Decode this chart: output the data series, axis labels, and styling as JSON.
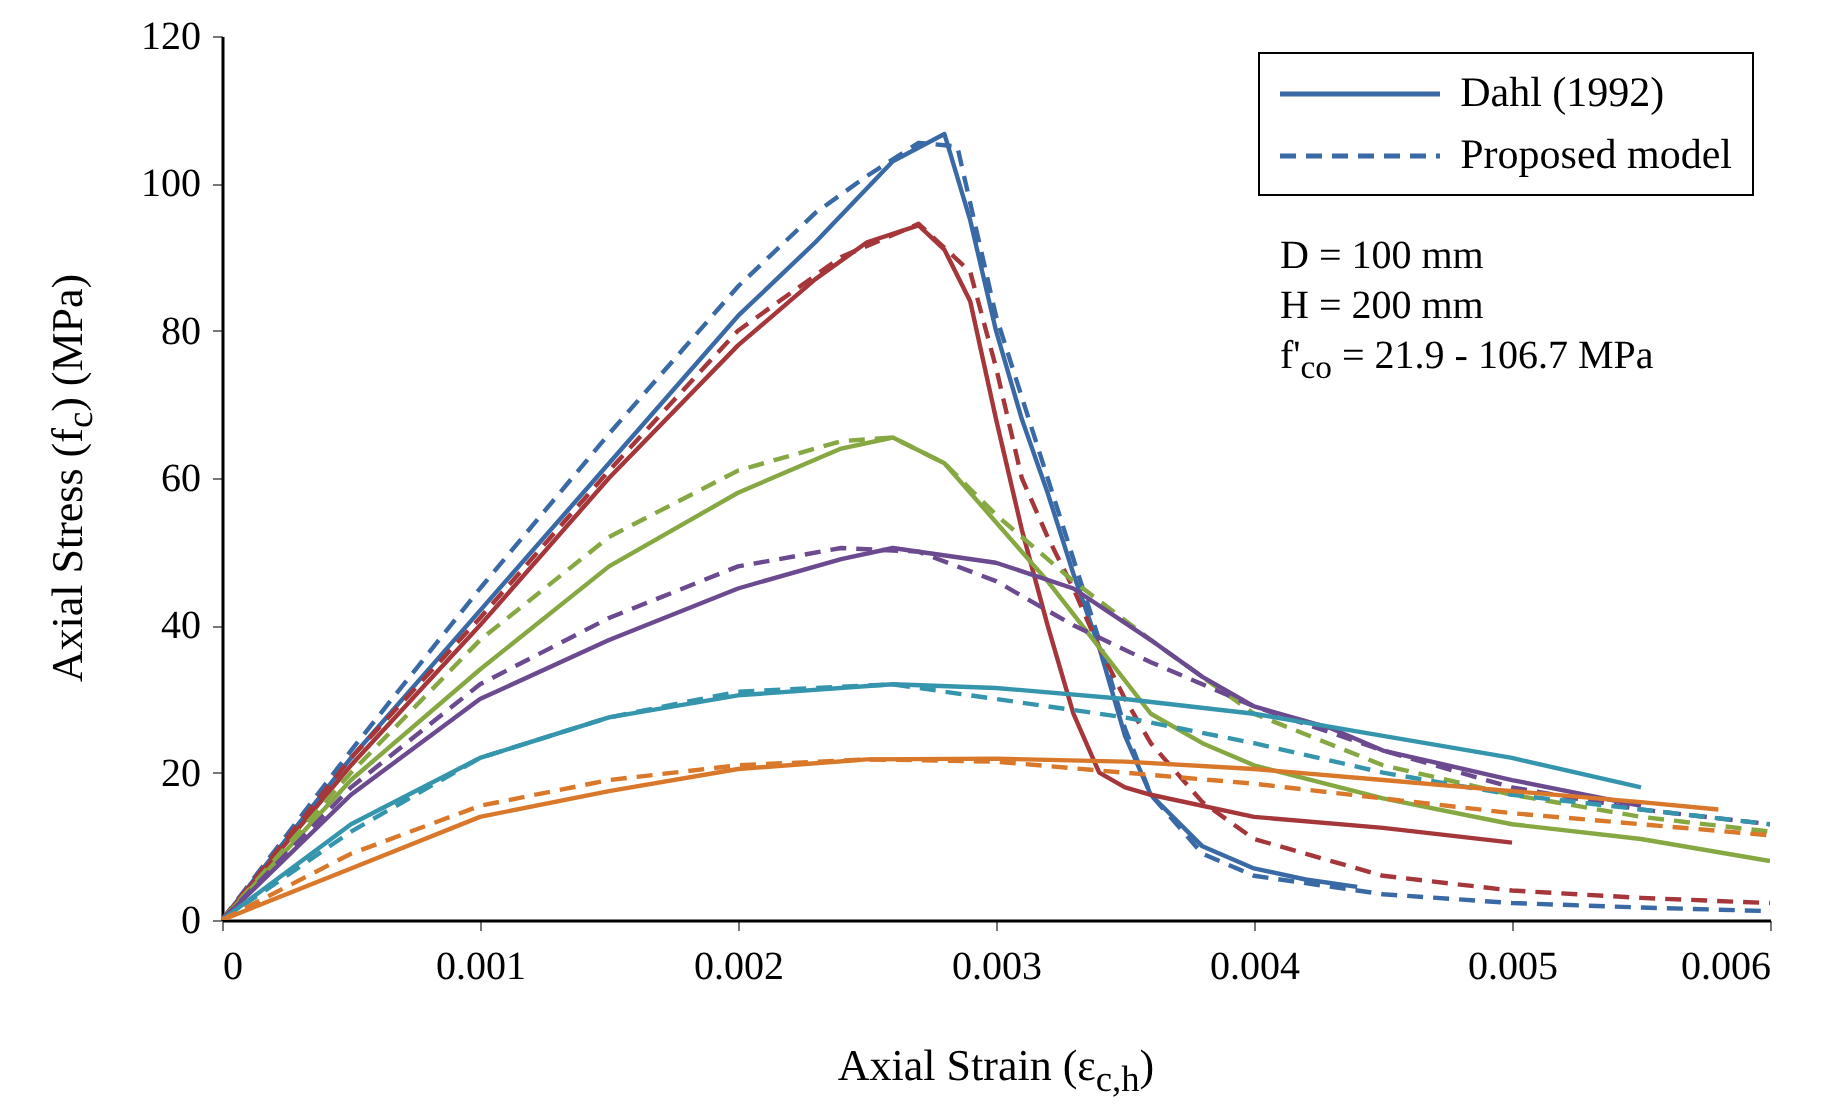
{
  "chart_data": {
    "type": "line",
    "xlabel": "Axial Strain (ε$_{c,h}$)",
    "ylabel": "Axial Stress (f$_{c}$) (MPa)",
    "xlim": [
      0,
      0.006
    ],
    "xticks": [
      0,
      0.001,
      0.002,
      0.003,
      0.004,
      0.005,
      0.006
    ],
    "ylim": [
      0,
      120
    ],
    "yticks": [
      0,
      20,
      40,
      60,
      80,
      100,
      120
    ],
    "grid": false,
    "legend": "top right",
    "annotations": [
      "D = 100 mm",
      "H = 200 mm",
      "f'$_{co}$ = 21.9 - 106.7 MPa"
    ],
    "series": [
      {
        "name": "Dahl (1992)",
        "color": "#3a6aa6",
        "line_style": "solid",
        "x": [
          0,
          0.0005,
          0.001,
          0.0015,
          0.002,
          0.0023,
          0.0026,
          0.0028,
          0.0029,
          0.003,
          0.0031,
          0.0032,
          0.0033,
          0.0034,
          0.0035,
          0.0036,
          0.0038,
          0.004,
          0.0042,
          0.0044
        ],
        "values": [
          0,
          22,
          42,
          62,
          82,
          92,
          103,
          106.7,
          95,
          80,
          68,
          58,
          47,
          37,
          25,
          17,
          10,
          7,
          5.5,
          4.5
        ]
      },
      {
        "name": "Proposed model",
        "color": "#3a6aa6",
        "line_style": "dashed",
        "x": [
          0,
          0.0005,
          0.001,
          0.0015,
          0.002,
          0.0023,
          0.0025,
          0.0027,
          0.00285,
          0.003,
          0.0032,
          0.0034,
          0.0035,
          0.0036,
          0.0038,
          0.004,
          0.0045,
          0.005,
          0.0055,
          0.006
        ],
        "values": [
          0,
          23,
          45,
          66,
          86,
          96,
          101,
          105.5,
          105,
          82,
          60,
          38,
          26,
          17,
          9,
          6,
          3.5,
          2.3,
          1.7,
          1.2
        ]
      },
      {
        "color": "#a5363a",
        "line_style": "solid",
        "x": [
          0,
          0.0005,
          0.001,
          0.0015,
          0.002,
          0.0023,
          0.0025,
          0.0027,
          0.0028,
          0.0029,
          0.003,
          0.0031,
          0.0032,
          0.0033,
          0.0034,
          0.0035,
          0.0036,
          0.004,
          0.0045,
          0.005
        ],
        "values": [
          0,
          21,
          40,
          60,
          78,
          87,
          92,
          94.3,
          91,
          84,
          68,
          53,
          40,
          28,
          20,
          18,
          17,
          14,
          12.5,
          10.5
        ]
      },
      {
        "color": "#a5363a",
        "line_style": "dashed",
        "x": [
          0,
          0.0005,
          0.001,
          0.0015,
          0.002,
          0.0024,
          0.0027,
          0.0029,
          0.003,
          0.0031,
          0.0032,
          0.0033,
          0.0034,
          0.0035,
          0.0036,
          0.0038,
          0.004,
          0.0045,
          0.005,
          0.0055,
          0.006
        ],
        "values": [
          0,
          22,
          41,
          61,
          80,
          90,
          94.5,
          88,
          75,
          60,
          52,
          45,
          37,
          30,
          24,
          16,
          11,
          6,
          4,
          3,
          2.3
        ]
      },
      {
        "color": "#86a842",
        "line_style": "solid",
        "x": [
          0,
          0.0005,
          0.001,
          0.0015,
          0.002,
          0.0024,
          0.0026,
          0.0028,
          0.003,
          0.0032,
          0.0034,
          0.0036,
          0.0038,
          0.004,
          0.0045,
          0.005,
          0.0055,
          0.006
        ],
        "values": [
          0,
          19,
          34,
          48,
          58,
          64,
          65.5,
          62,
          54,
          46,
          37,
          28,
          24,
          21,
          16.5,
          13,
          11,
          8
        ]
      },
      {
        "color": "#86a842",
        "line_style": "dashed",
        "x": [
          0,
          0.0005,
          0.001,
          0.0015,
          0.002,
          0.0024,
          0.0026,
          0.0028,
          0.003,
          0.0033,
          0.0036,
          0.004,
          0.0045,
          0.005,
          0.0055,
          0.006
        ],
        "values": [
          0,
          20,
          38,
          52,
          61,
          65,
          65.5,
          62,
          55,
          46,
          38,
          28,
          21,
          17,
          14,
          12
        ]
      },
      {
        "color": "#6b4a90",
        "line_style": "solid",
        "x": [
          0,
          0.0005,
          0.001,
          0.0015,
          0.002,
          0.0024,
          0.0026,
          0.003,
          0.0033,
          0.0036,
          0.0038,
          0.004,
          0.0043,
          0.0045,
          0.005,
          0.0055
        ],
        "values": [
          0,
          17,
          30,
          38,
          45,
          49,
          50.5,
          48.5,
          45,
          38,
          33,
          29,
          26,
          23,
          19,
          15.5
        ]
      },
      {
        "color": "#6b4a90",
        "line_style": "dashed",
        "x": [
          0,
          0.0005,
          0.001,
          0.0015,
          0.002,
          0.0024,
          0.0027,
          0.003,
          0.0033,
          0.0036,
          0.004,
          0.0045,
          0.005,
          0.0055,
          0.006
        ],
        "values": [
          0,
          18,
          32,
          41,
          48,
          50.5,
          50,
          46,
          40,
          35,
          29,
          23,
          18,
          15,
          13
        ]
      },
      {
        "color": "#3595ad",
        "line_style": "solid",
        "x": [
          0,
          0.0005,
          0.001,
          0.0015,
          0.002,
          0.0026,
          0.003,
          0.0035,
          0.004,
          0.0045,
          0.005,
          0.0055
        ],
        "values": [
          0,
          13,
          22,
          27.5,
          30.5,
          32,
          31.5,
          30,
          28,
          25,
          22,
          18
        ]
      },
      {
        "color": "#3595ad",
        "line_style": "dashed",
        "x": [
          0,
          0.0005,
          0.001,
          0.0015,
          0.002,
          0.0026,
          0.003,
          0.0035,
          0.004,
          0.0045,
          0.005,
          0.0055,
          0.006
        ],
        "values": [
          0,
          12,
          22,
          27.5,
          31,
          32,
          30,
          27.5,
          24,
          20,
          17,
          15,
          13
        ]
      },
      {
        "color": "#d9782a",
        "line_style": "solid",
        "x": [
          0,
          0.0005,
          0.001,
          0.0015,
          0.002,
          0.0025,
          0.003,
          0.0035,
          0.004,
          0.0045,
          0.005,
          0.0055,
          0.0058
        ],
        "values": [
          0,
          7,
          14,
          17.5,
          20.5,
          21.8,
          21.9,
          21.5,
          20.5,
          19,
          17.5,
          16,
          15
        ]
      },
      {
        "color": "#d9782a",
        "line_style": "dashed",
        "x": [
          0,
          0.0005,
          0.001,
          0.0015,
          0.002,
          0.0025,
          0.003,
          0.0035,
          0.004,
          0.0045,
          0.005,
          0.0055,
          0.006
        ],
        "values": [
          0,
          9,
          15.5,
          19,
          21,
          21.8,
          21.5,
          20,
          18.5,
          16.5,
          14.5,
          13,
          11.5
        ]
      }
    ]
  }
}
